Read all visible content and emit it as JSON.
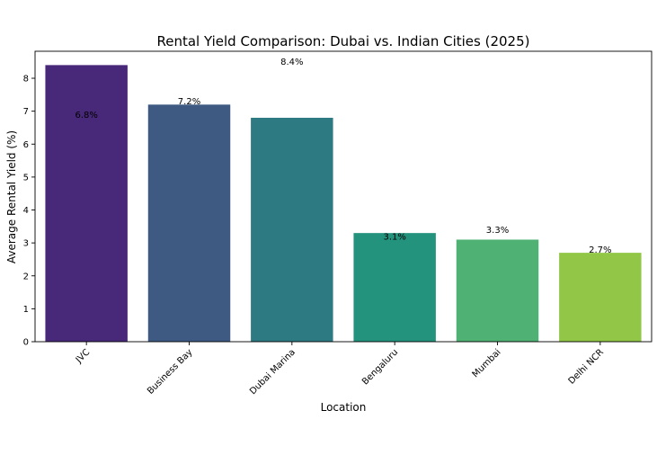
{
  "chart_data": {
    "type": "bar",
    "title": "Rental Yield Comparison: Dubai vs. Indian Cities (2025)",
    "xlabel": "Location",
    "ylabel": "Average Rental Yield (%)",
    "categories": [
      "JVC",
      "Business Bay",
      "Dubai Marina",
      "Bengaluru",
      "Mumbai",
      "Delhi NCR"
    ],
    "values": [
      8.4,
      7.2,
      6.8,
      3.3,
      3.1,
      2.7
    ],
    "colors": [
      "#482878",
      "#3e5a83",
      "#2d7a82",
      "#24937e",
      "#4fb173",
      "#92c647"
    ],
    "ylim": [
      0,
      8.82
    ],
    "yticks": [
      0,
      1,
      2,
      3,
      4,
      5,
      6,
      7,
      8
    ],
    "grid": false,
    "annotations": [
      {
        "text": "8.4%",
        "x_index": 2.0,
        "y": 8.5
      },
      {
        "text": "7.2%",
        "x_index": 1.0,
        "y": 7.3
      },
      {
        "text": "6.8%",
        "x_index": 0.0,
        "y": 6.9
      },
      {
        "text": "3.3%",
        "x_index": 4.0,
        "y": 3.4
      },
      {
        "text": "3.1%",
        "x_index": 3.0,
        "y": 3.2
      },
      {
        "text": "2.7%",
        "x_index": 5.0,
        "y": 2.8
      }
    ]
  }
}
